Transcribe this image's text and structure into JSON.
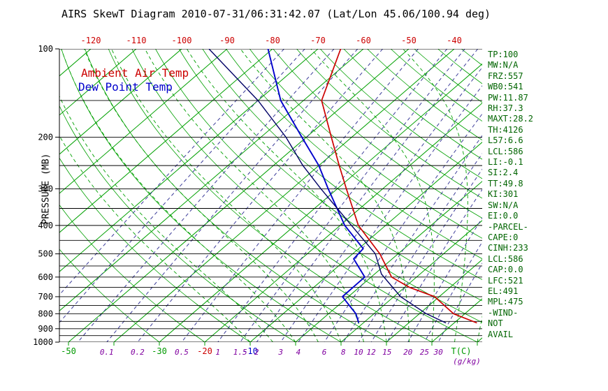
{
  "window": {
    "title": "AIRS SkewT Diagram 2010-07-31/06:31:42.07 (Lat/Lon 45.06/100.94 deg)"
  },
  "legend": {
    "air_temp_label": "Ambient Air Temp",
    "dew_point_label": "Dew Point Temp"
  },
  "axes": {
    "pressure_label": "PRESSURE (MB)",
    "pressure_ticks": [
      100,
      200,
      300,
      400,
      500,
      600,
      700,
      800,
      900,
      1000
    ],
    "temp_unit_label": "T(C)",
    "mixing_unit_label": "(g/kg)",
    "top_temp_labels": [
      -120,
      -110,
      -100,
      -90,
      -80,
      -70,
      -60,
      -50,
      -40
    ],
    "bottom_temp_labels": [
      {
        "value": -50,
        "color": "#009900"
      },
      {
        "value": -30,
        "color": "#009900"
      },
      {
        "value": -20,
        "color": "#cc0000"
      },
      {
        "value": -10,
        "color": "#0000cc"
      }
    ],
    "mixing_ratio_labels": [
      0.1,
      0.2,
      0.5,
      1,
      1.5,
      2,
      3,
      4,
      6,
      8,
      10,
      12,
      15,
      20,
      25,
      30
    ]
  },
  "stats_panel": {
    "lines": [
      "TP:100",
      "MW:N/A",
      "FRZ:557",
      "WB0:541",
      "PW:11.87",
      "RH:37.3",
      "MAXT:28.2",
      "TH:4126",
      "L57:6.6",
      "LCL:586",
      "LI:-0.1",
      "SI:2.4",
      "TT:49.8",
      "KI:301",
      "SW:N/A",
      "EI:0.0",
      "-PARCEL-",
      "CAPE:0",
      "CINH:233",
      "LCL:586",
      "CAP:0.0",
      "LFC:521",
      "EL:491",
      "MPL:475",
      "-WIND-",
      "NOT",
      "AVAIL"
    ]
  },
  "colors": {
    "title_text": "#000000",
    "air_temp": "#cc0000",
    "dew_point": "#0000cc",
    "parcel": "#000066",
    "grid_green": "#00a000",
    "moist_green": "#00a000",
    "mixing_line": "#3d3d9a",
    "mixing_label": "#8000a0",
    "temp_label_green": "#009900",
    "top_axis_red": "#cc0000",
    "stats_text": "#006400",
    "axis_black": "#000000"
  },
  "chart_data": {
    "type": "line",
    "title": "AIRS SkewT Diagram 2010-07-31/06:31:42.07 (Lat/Lon 45.06/100.94 deg)",
    "x_axis_label": "T(C)",
    "y_axis_label": "PRESSURE (MB)",
    "y_scale": "log-pressure",
    "x_scale": "skewed-temperature",
    "pressure_range_mb": [
      100,
      1000
    ],
    "surface_temp_axis_range_c": [
      -50,
      40
    ],
    "series": [
      {
        "name": "Ambient Air Temp",
        "color": "#cc0000",
        "points_p_t": [
          [
            100,
            -65
          ],
          [
            150,
            -56
          ],
          [
            200,
            -44.5
          ],
          [
            250,
            -35.5
          ],
          [
            300,
            -28
          ],
          [
            400,
            -16
          ],
          [
            500,
            -4
          ],
          [
            600,
            4.5
          ],
          [
            650,
            11
          ],
          [
            700,
            19
          ],
          [
            800,
            27.5
          ],
          [
            860,
            35
          ]
        ]
      },
      {
        "name": "Dew Point Temp",
        "color": "#0000cc",
        "points_p_t": [
          [
            100,
            -81
          ],
          [
            150,
            -65
          ],
          [
            200,
            -51
          ],
          [
            250,
            -40
          ],
          [
            300,
            -32
          ],
          [
            400,
            -19
          ],
          [
            480,
            -9
          ],
          [
            520,
            -8.5
          ],
          [
            600,
            -1.4
          ],
          [
            700,
            -1.3
          ],
          [
            800,
            6
          ],
          [
            860,
            9
          ]
        ]
      },
      {
        "name": "Parcel Trace",
        "color": "#000066",
        "points_p_t": [
          [
            100,
            -94
          ],
          [
            150,
            -70
          ],
          [
            200,
            -54.5
          ],
          [
            250,
            -43.5
          ],
          [
            300,
            -33.6
          ],
          [
            400,
            -17.5
          ],
          [
            500,
            -5
          ],
          [
            586,
            1.5
          ],
          [
            700,
            11.5
          ],
          [
            800,
            21.5
          ],
          [
            860,
            28.2
          ]
        ]
      }
    ],
    "grid": {
      "isotherms_c": {
        "min": -120,
        "max": 40,
        "step": 10
      },
      "dry_adiabats_theta_c": {
        "min": -30,
        "max": 180,
        "step": 10
      },
      "moist_adiabats_start_c": [
        -10,
        -5,
        0,
        5,
        10,
        15,
        20,
        25,
        30,
        35,
        40
      ],
      "mixing_ratio_lines_gkg": [
        0.01,
        0.02,
        0.05,
        0.1,
        0.2,
        0.5,
        1,
        1.5,
        2,
        3,
        4,
        6,
        8,
        10,
        12,
        15,
        20,
        25,
        30
      ],
      "pressure_lines_mb": {
        "min": 100,
        "max": 1000,
        "step": 50
      }
    }
  }
}
